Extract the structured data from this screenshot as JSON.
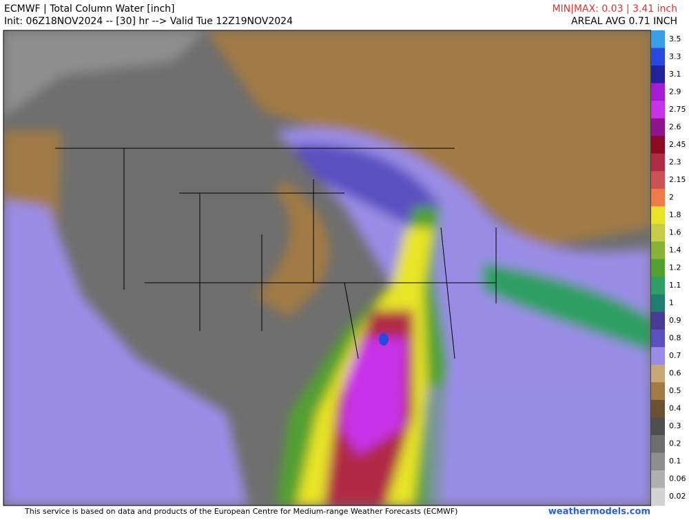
{
  "header": {
    "title": "ECMWF | Total Column Water [inch]",
    "subtitle": "Init: 06Z18NOV2024 -- [30] hr --> Valid Tue 12Z19NOV2024",
    "minmax": "MIN|MAX: 0.03 | 3.41 inch",
    "areal_avg": "AREAL AVG 0.71 INCH"
  },
  "legend": {
    "levels": [
      {
        "value": 3.5,
        "color": "#3a9ee8"
      },
      {
        "value": 3.3,
        "color": "#2848e0"
      },
      {
        "value": 3.1,
        "color": "#22229c"
      },
      {
        "value": 2.9,
        "color": "#a41cd4"
      },
      {
        "value": 2.75,
        "color": "#c832e8"
      },
      {
        "value": 2.6,
        "color": "#8e1490"
      },
      {
        "value": 2.45,
        "color": "#8c0a24"
      },
      {
        "value": 2.3,
        "color": "#b02c44"
      },
      {
        "value": 2.15,
        "color": "#cc5058"
      },
      {
        "value": 2,
        "color": "#f07a48"
      },
      {
        "value": 1.8,
        "color": "#e8e428"
      },
      {
        "value": 1.6,
        "color": "#c6cc46"
      },
      {
        "value": 1.4,
        "color": "#86b236"
      },
      {
        "value": 1.2,
        "color": "#52a032"
      },
      {
        "value": 1.1,
        "color": "#2e9e62"
      },
      {
        "value": 1,
        "color": "#1f7e70"
      },
      {
        "value": 0.9,
        "color": "#4a3c94"
      },
      {
        "value": 0.8,
        "color": "#5c50c0"
      },
      {
        "value": 0.7,
        "color": "#9a8ce6"
      },
      {
        "value": 0.6,
        "color": "#c8a874"
      },
      {
        "value": 0.5,
        "color": "#a27a44"
      },
      {
        "value": 0.4,
        "color": "#6c5232"
      },
      {
        "value": 0.3,
        "color": "#4e4e4e"
      },
      {
        "value": 0.2,
        "color": "#6e6e6e"
      },
      {
        "value": 0.1,
        "color": "#8e8e8e"
      },
      {
        "value": 0.06,
        "color": "#b0b0b0"
      },
      {
        "value": 0.02,
        "color": "#d2d2d2"
      }
    ]
  },
  "footer": {
    "credit": "This service is based on data and products of the European Centre for Medium-range Weather Forecasts (ECMWF)",
    "site": "weathermodels.com"
  }
}
